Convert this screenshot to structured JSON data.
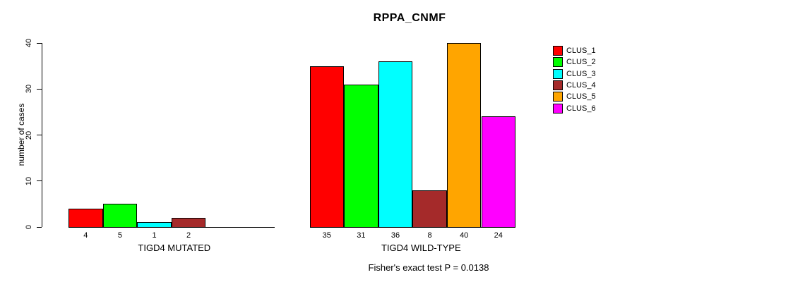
{
  "chart_data": {
    "type": "bar",
    "title": "RPPA_CNMF",
    "ylabel": "number of cases",
    "xlabel": "",
    "ylim": [
      0,
      40
    ],
    "yticks": [
      0,
      10,
      20,
      30,
      40
    ],
    "grid": false,
    "legend_position": "right",
    "categories": [
      "CLUS_1",
      "CLUS_2",
      "CLUS_3",
      "CLUS_4",
      "CLUS_5",
      "CLUS_6"
    ],
    "colors": [
      "#FF0000",
      "#00FF00",
      "#00FFFF",
      "#A52A2A",
      "#FFA500",
      "#FF00FF"
    ],
    "groups": [
      {
        "label": "TIGD4 MUTATED",
        "values": [
          4,
          5,
          1,
          2,
          0,
          0
        ]
      },
      {
        "label": "TIGD4 WILD-TYPE",
        "values": [
          35,
          31,
          36,
          8,
          40,
          24
        ]
      }
    ],
    "annotation": "Fisher's exact test P = 0.0138",
    "axis_color": "#000000",
    "background_color": "#FFFFFF"
  }
}
